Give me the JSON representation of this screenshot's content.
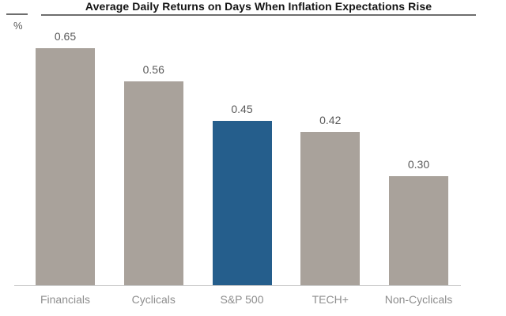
{
  "header": {
    "title": "Average Daily Returns on Days When Inflation Expectations Rise",
    "unit_label": "%"
  },
  "chart_data": {
    "type": "bar",
    "title": "Average Daily Returns on Days When Inflation Expectations Rise",
    "xlabel": "",
    "ylabel": "%",
    "categories": [
      "Financials",
      "Cyclicals",
      "S&P 500",
      "TECH+",
      "Non-Cyclicals"
    ],
    "values": [
      0.65,
      0.56,
      0.45,
      0.42,
      0.3
    ],
    "value_labels": [
      "0.65",
      "0.56",
      "0.45",
      "0.42",
      "0.30"
    ],
    "ylim": [
      0,
      0.68
    ],
    "grid": false,
    "legend": "none",
    "highlight_index": 2,
    "colors": {
      "bar_default": "#a9a29b",
      "bar_highlight": "#255e8c",
      "value_label": "#595959",
      "category_label": "#8e8e8e",
      "axis_line": "#cbcbcb",
      "title_text": "#141414",
      "title_rule": "#6e6e6e"
    }
  }
}
